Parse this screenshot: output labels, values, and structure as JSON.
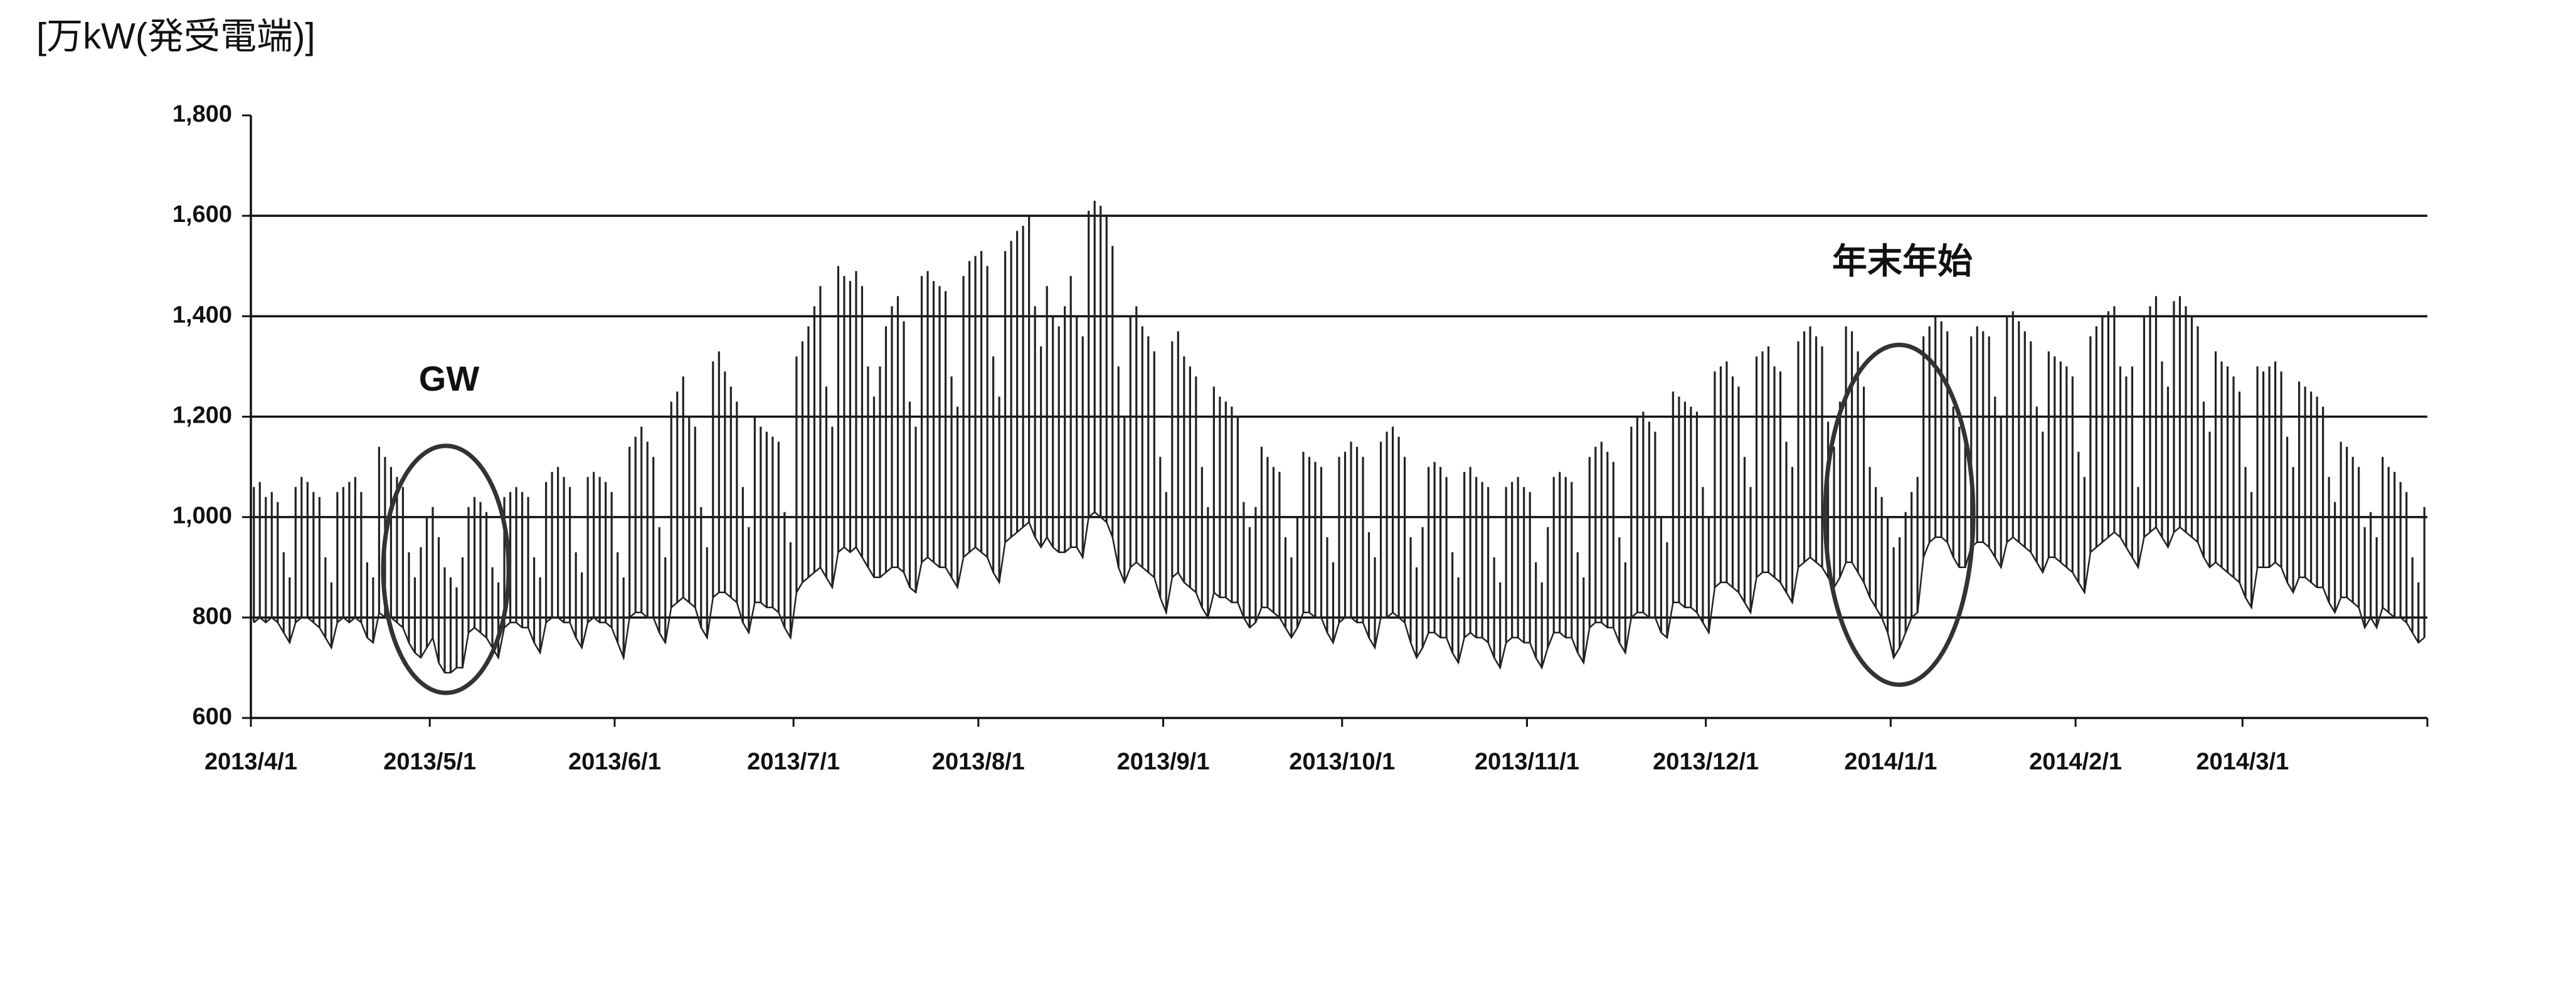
{
  "chart_data": {
    "type": "line",
    "y_label": "[万kW(発受電端)]",
    "annotations": [
      {
        "text": "GW"
      },
      {
        "text": "年末年始"
      }
    ],
    "ylim": [
      600,
      1800
    ],
    "yticks": [
      600,
      800,
      {
        "value": 1000,
        "label": "1,000"
      },
      {
        "value": 1200,
        "label": "1,200"
      },
      {
        "value": 1400,
        "label": "1,400"
      },
      {
        "value": 1600,
        "label": "1,600"
      },
      {
        "value": 1800,
        "label": "1,800"
      }
    ],
    "grid": true,
    "xticks": [
      "2013/4/1",
      "2013/5/1",
      "2013/6/1",
      "2013/7/1",
      "2013/8/1",
      "2013/9/1",
      "2013/10/1",
      "2013/11/1",
      "2013/12/1",
      "2014/1/1",
      "2014/2/1",
      "2014/3/1"
    ],
    "x": [
      "2013/4/1",
      "2013/4/2",
      "2013/4/3",
      "2013/4/4",
      "2013/4/5",
      "2013/4/6",
      "2013/4/7",
      "2013/4/8",
      "2013/4/9",
      "2013/4/10",
      "2013/4/11",
      "2013/4/12",
      "2013/4/13",
      "2013/4/14",
      "2013/4/15",
      "2013/4/16",
      "2013/4/17",
      "2013/4/18",
      "2013/4/19",
      "2013/4/20",
      "2013/4/21",
      "2013/4/22",
      "2013/4/23",
      "2013/4/24",
      "2013/4/25",
      "2013/4/26",
      "2013/4/27",
      "2013/4/28",
      "2013/4/29",
      "2013/4/30",
      "2013/5/1",
      "2013/5/2",
      "2013/5/3",
      "2013/5/4",
      "2013/5/5",
      "2013/5/6",
      "2013/5/7",
      "2013/5/8",
      "2013/5/9",
      "2013/5/10",
      "2013/5/11",
      "2013/5/12",
      "2013/5/13",
      "2013/5/14",
      "2013/5/15",
      "2013/5/16",
      "2013/5/17",
      "2013/5/18",
      "2013/5/19",
      "2013/5/20",
      "2013/5/21",
      "2013/5/22",
      "2013/5/23",
      "2013/5/24",
      "2013/5/25",
      "2013/5/26",
      "2013/5/27",
      "2013/5/28",
      "2013/5/29",
      "2013/5/30",
      "2013/5/31",
      "2013/6/1",
      "2013/6/2",
      "2013/6/3",
      "2013/6/4",
      "2013/6/5",
      "2013/6/6",
      "2013/6/7",
      "2013/6/8",
      "2013/6/9",
      "2013/6/10",
      "2013/6/11",
      "2013/6/12",
      "2013/6/13",
      "2013/6/14",
      "2013/6/15",
      "2013/6/16",
      "2013/6/17",
      "2013/6/18",
      "2013/6/19",
      "2013/6/20",
      "2013/6/21",
      "2013/6/22",
      "2013/6/23",
      "2013/6/24",
      "2013/6/25",
      "2013/6/26",
      "2013/6/27",
      "2013/6/28",
      "2013/6/29",
      "2013/6/30",
      "2013/7/1",
      "2013/7/2",
      "2013/7/3",
      "2013/7/4",
      "2013/7/5",
      "2013/7/6",
      "2013/7/7",
      "2013/7/8",
      "2013/7/9",
      "2013/7/10",
      "2013/7/11",
      "2013/7/12",
      "2013/7/13",
      "2013/7/14",
      "2013/7/15",
      "2013/7/16",
      "2013/7/17",
      "2013/7/18",
      "2013/7/19",
      "2013/7/20",
      "2013/7/21",
      "2013/7/22",
      "2013/7/23",
      "2013/7/24",
      "2013/7/25",
      "2013/7/26",
      "2013/7/27",
      "2013/7/28",
      "2013/7/29",
      "2013/7/30",
      "2013/7/31",
      "2013/8/1",
      "2013/8/2",
      "2013/8/3",
      "2013/8/4",
      "2013/8/5",
      "2013/8/6",
      "2013/8/7",
      "2013/8/8",
      "2013/8/9",
      "2013/8/10",
      "2013/8/11",
      "2013/8/12",
      "2013/8/13",
      "2013/8/14",
      "2013/8/15",
      "2013/8/16",
      "2013/8/17",
      "2013/8/18",
      "2013/8/19",
      "2013/8/20",
      "2013/8/21",
      "2013/8/22",
      "2013/8/23",
      "2013/8/24",
      "2013/8/25",
      "2013/8/26",
      "2013/8/27",
      "2013/8/28",
      "2013/8/29",
      "2013/8/30",
      "2013/8/31",
      "2013/9/1",
      "2013/9/2",
      "2013/9/3",
      "2013/9/4",
      "2013/9/5",
      "2013/9/6",
      "2013/9/7",
      "2013/9/8",
      "2013/9/9",
      "2013/9/10",
      "2013/9/11",
      "2013/9/12",
      "2013/9/13",
      "2013/9/14",
      "2013/9/15",
      "2013/9/16",
      "2013/9/17",
      "2013/9/18",
      "2013/9/19",
      "2013/9/20",
      "2013/9/21",
      "2013/9/22",
      "2013/9/23",
      "2013/9/24",
      "2013/9/25",
      "2013/9/26",
      "2013/9/27",
      "2013/9/28",
      "2013/9/29",
      "2013/9/30",
      "2013/10/1",
      "2013/10/2",
      "2013/10/3",
      "2013/10/4",
      "2013/10/5",
      "2013/10/6",
      "2013/10/7",
      "2013/10/8",
      "2013/10/9",
      "2013/10/10",
      "2013/10/11",
      "2013/10/12",
      "2013/10/13",
      "2013/10/14",
      "2013/10/15",
      "2013/10/16",
      "2013/10/17",
      "2013/10/18",
      "2013/10/19",
      "2013/10/20",
      "2013/10/21",
      "2013/10/22",
      "2013/10/23",
      "2013/10/24",
      "2013/10/25",
      "2013/10/26",
      "2013/10/27",
      "2013/10/28",
      "2013/10/29",
      "2013/10/30",
      "2013/10/31",
      "2013/11/1",
      "2013/11/2",
      "2013/11/3",
      "2013/11/4",
      "2013/11/5",
      "2013/11/6",
      "2013/11/7",
      "2013/11/8",
      "2013/11/9",
      "2013/11/10",
      "2013/11/11",
      "2013/11/12",
      "2013/11/13",
      "2013/11/14",
      "2013/11/15",
      "2013/11/16",
      "2013/11/17",
      "2013/11/18",
      "2013/11/19",
      "2013/11/20",
      "2013/11/21",
      "2013/11/22",
      "2013/11/23",
      "2013/11/24",
      "2013/11/25",
      "2013/11/26",
      "2013/11/27",
      "2013/11/28",
      "2013/11/29",
      "2013/11/30",
      "2013/12/1",
      "2013/12/2",
      "2013/12/3",
      "2013/12/4",
      "2013/12/5",
      "2013/12/6",
      "2013/12/7",
      "2013/12/8",
      "2013/12/9",
      "2013/12/10",
      "2013/12/11",
      "2013/12/12",
      "2013/12/13",
      "2013/12/14",
      "2013/12/15",
      "2013/12/16",
      "2013/12/17",
      "2013/12/18",
      "2013/12/19",
      "2013/12/20",
      "2013/12/21",
      "2013/12/22",
      "2013/12/23",
      "2013/12/24",
      "2013/12/25",
      "2013/12/26",
      "2013/12/27",
      "2013/12/28",
      "2013/12/29",
      "2013/12/30",
      "2013/12/31",
      "2014/1/1",
      "2014/1/2",
      "2014/1/3",
      "2014/1/4",
      "2014/1/5",
      "2014/1/6",
      "2014/1/7",
      "2014/1/8",
      "2014/1/9",
      "2014/1/10",
      "2014/1/11",
      "2014/1/12",
      "2014/1/13",
      "2014/1/14",
      "2014/1/15",
      "2014/1/16",
      "2014/1/17",
      "2014/1/18",
      "2014/1/19",
      "2014/1/20",
      "2014/1/21",
      "2014/1/22",
      "2014/1/23",
      "2014/1/24",
      "2014/1/25",
      "2014/1/26",
      "2014/1/27",
      "2014/1/28",
      "2014/1/29",
      "2014/1/30",
      "2014/1/31",
      "2014/2/1",
      "2014/2/2",
      "2014/2/3",
      "2014/2/4",
      "2014/2/5",
      "2014/2/6",
      "2014/2/7",
      "2014/2/8",
      "2014/2/9",
      "2014/2/10",
      "2014/2/11",
      "2014/2/12",
      "2014/2/13",
      "2014/2/14",
      "2014/2/15",
      "2014/2/16",
      "2014/2/17",
      "2014/2/18",
      "2014/2/19",
      "2014/2/20",
      "2014/2/21",
      "2014/2/22",
      "2014/2/23",
      "2014/2/24",
      "2014/2/25",
      "2014/2/26",
      "2014/2/27",
      "2014/2/28",
      "2014/3/1",
      "2014/3/2",
      "2014/3/3",
      "2014/3/4",
      "2014/3/5",
      "2014/3/6",
      "2014/3/7",
      "2014/3/8",
      "2014/3/9",
      "2014/3/10",
      "2014/3/11",
      "2014/3/12",
      "2014/3/13",
      "2014/3/14",
      "2014/3/15",
      "2014/3/16",
      "2014/3/17",
      "2014/3/18",
      "2014/3/19",
      "2014/3/20",
      "2014/3/21",
      "2014/3/22",
      "2014/3/23",
      "2014/3/24",
      "2014/3/25",
      "2014/3/26",
      "2014/3/27",
      "2014/3/28",
      "2014/3/29",
      "2014/3/30",
      "2014/3/31"
    ],
    "series": [
      {
        "color": "#222222",
        "values": [
          1060,
          1070,
          1040,
          1050,
          1030,
          930,
          880,
          1060,
          1080,
          1070,
          1050,
          1040,
          920,
          870,
          1050,
          1060,
          1070,
          1080,
          1050,
          910,
          880,
          1140,
          1120,
          1100,
          1080,
          1060,
          930,
          880,
          940,
          1000,
          1020,
          960,
          900,
          880,
          860,
          920,
          1020,
          1040,
          1030,
          1010,
          900,
          870,
          1040,
          1050,
          1060,
          1050,
          1040,
          920,
          880,
          1070,
          1090,
          1100,
          1080,
          1060,
          930,
          890,
          1080,
          1090,
          1080,
          1070,
          1050,
          930,
          880,
          1140,
          1160,
          1180,
          1150,
          1120,
          980,
          920,
          1230,
          1250,
          1280,
          1200,
          1180,
          1020,
          940,
          1310,
          1330,
          1290,
          1260,
          1230,
          1060,
          980,
          1200,
          1180,
          1170,
          1160,
          1150,
          1010,
          950,
          1320,
          1350,
          1380,
          1420,
          1460,
          1260,
          1180,
          1500,
          1480,
          1470,
          1490,
          1460,
          1300,
          1240,
          1300,
          1380,
          1420,
          1440,
          1390,
          1230,
          1180,
          1480,
          1490,
          1470,
          1460,
          1450,
          1280,
          1220,
          1480,
          1510,
          1520,
          1530,
          1500,
          1320,
          1240,
          1530,
          1550,
          1570,
          1580,
          1600,
          1420,
          1340,
          1460,
          1400,
          1380,
          1420,
          1480,
          1400,
          1360,
          1610,
          1630,
          1620,
          1600,
          1540,
          1300,
          1200,
          1400,
          1420,
          1380,
          1360,
          1330,
          1120,
          1050,
          1350,
          1370,
          1320,
          1300,
          1280,
          1100,
          1020,
          1260,
          1240,
          1230,
          1220,
          1200,
          1030,
          980,
          1020,
          1140,
          1120,
          1100,
          1090,
          960,
          920,
          1000,
          1130,
          1120,
          1110,
          1100,
          960,
          910,
          1120,
          1130,
          1150,
          1140,
          1120,
          970,
          920,
          1150,
          1170,
          1180,
          1160,
          1120,
          960,
          900,
          980,
          1100,
          1110,
          1100,
          1080,
          930,
          880,
          1090,
          1100,
          1080,
          1070,
          1060,
          920,
          870,
          1060,
          1070,
          1080,
          1060,
          1050,
          910,
          870,
          980,
          1080,
          1090,
          1080,
          1070,
          930,
          880,
          1120,
          1140,
          1150,
          1130,
          1110,
          960,
          910,
          1180,
          1200,
          1210,
          1190,
          1170,
          1000,
          950,
          1250,
          1240,
          1230,
          1220,
          1210,
          1060,
          1000,
          1290,
          1300,
          1310,
          1280,
          1260,
          1120,
          1060,
          1320,
          1330,
          1340,
          1300,
          1290,
          1150,
          1100,
          1350,
          1370,
          1380,
          1360,
          1340,
          1190,
          1140,
          1230,
          1380,
          1370,
          1330,
          1260,
          1100,
          1060,
          1040,
          1000,
          940,
          960,
          1010,
          1050,
          1080,
          1360,
          1380,
          1400,
          1390,
          1370,
          1220,
          1180,
          1150,
          1360,
          1380,
          1370,
          1360,
          1240,
          1200,
          1400,
          1410,
          1390,
          1370,
          1350,
          1220,
          1170,
          1330,
          1320,
          1310,
          1300,
          1280,
          1130,
          1080,
          1360,
          1380,
          1400,
          1410,
          1420,
          1300,
          1280,
          1300,
          1060,
          1400,
          1420,
          1440,
          1310,
          1260,
          1430,
          1440,
          1420,
          1400,
          1380,
          1230,
          1170,
          1330,
          1310,
          1300,
          1280,
          1250,
          1100,
          1050,
          1300,
          1290,
          1300,
          1310,
          1290,
          1160,
          1100,
          1270,
          1260,
          1250,
          1240,
          1220,
          1080,
          1030,
          1150,
          1140,
          1120,
          1100,
          980,
          1010,
          960,
          1120,
          1100,
          1090,
          1070,
          1050,
          920,
          870,
          1020
        ]
      },
      {
        "color": "#222222",
        "values": [
          790,
          800,
          790,
          800,
          790,
          770,
          750,
          790,
          800,
          800,
          790,
          780,
          760,
          740,
          790,
          800,
          790,
          800,
          790,
          760,
          750,
          810,
          800,
          800,
          790,
          780,
          750,
          730,
          720,
          740,
          760,
          710,
          690,
          690,
          700,
          700,
          770,
          780,
          770,
          760,
          740,
          720,
          780,
          790,
          790,
          780,
          780,
          750,
          730,
          790,
          800,
          800,
          790,
          790,
          760,
          740,
          790,
          800,
          790,
          790,
          780,
          750,
          720,
          800,
          810,
          810,
          800,
          800,
          770,
          750,
          820,
          830,
          840,
          830,
          820,
          780,
          760,
          840,
          850,
          850,
          840,
          830,
          790,
          770,
          830,
          830,
          820,
          820,
          810,
          780,
          760,
          850,
          870,
          880,
          890,
          900,
          880,
          860,
          930,
          940,
          930,
          940,
          920,
          900,
          880,
          880,
          890,
          900,
          900,
          890,
          860,
          850,
          910,
          920,
          910,
          900,
          900,
          880,
          860,
          920,
          930,
          940,
          930,
          920,
          890,
          870,
          950,
          960,
          970,
          980,
          990,
          960,
          940,
          960,
          940,
          930,
          930,
          940,
          940,
          920,
          1000,
          1010,
          1000,
          990,
          960,
          900,
          870,
          900,
          910,
          900,
          890,
          880,
          840,
          810,
          880,
          890,
          870,
          860,
          850,
          820,
          800,
          850,
          840,
          840,
          830,
          830,
          800,
          780,
          790,
          820,
          820,
          810,
          800,
          780,
          760,
          780,
          810,
          810,
          800,
          800,
          770,
          750,
          790,
          800,
          800,
          790,
          790,
          760,
          740,
          800,
          800,
          810,
          800,
          790,
          750,
          720,
          740,
          770,
          770,
          760,
          760,
          730,
          710,
          760,
          770,
          760,
          760,
          750,
          720,
          700,
          750,
          760,
          760,
          750,
          750,
          720,
          700,
          740,
          770,
          770,
          760,
          760,
          730,
          710,
          780,
          790,
          790,
          780,
          780,
          750,
          730,
          800,
          810,
          810,
          800,
          800,
          770,
          760,
          830,
          830,
          820,
          820,
          810,
          790,
          770,
          860,
          870,
          870,
          860,
          850,
          830,
          810,
          880,
          890,
          890,
          880,
          870,
          850,
          830,
          900,
          910,
          920,
          910,
          900,
          880,
          860,
          880,
          910,
          910,
          890,
          870,
          840,
          820,
          800,
          770,
          720,
          740,
          770,
          800,
          810,
          920,
          950,
          960,
          960,
          950,
          920,
          900,
          900,
          940,
          950,
          950,
          940,
          920,
          900,
          950,
          960,
          950,
          940,
          930,
          910,
          890,
          920,
          920,
          910,
          900,
          890,
          870,
          850,
          930,
          940,
          950,
          960,
          970,
          960,
          940,
          920,
          900,
          960,
          970,
          980,
          960,
          940,
          970,
          980,
          970,
          960,
          950,
          920,
          900,
          910,
          900,
          890,
          880,
          870,
          840,
          820,
          900,
          900,
          900,
          910,
          900,
          870,
          850,
          880,
          880,
          870,
          860,
          860,
          830,
          810,
          840,
          840,
          830,
          820,
          780,
          800,
          780,
          820,
          810,
          800,
          800,
          790,
          770,
          750,
          760
        ]
      }
    ]
  }
}
